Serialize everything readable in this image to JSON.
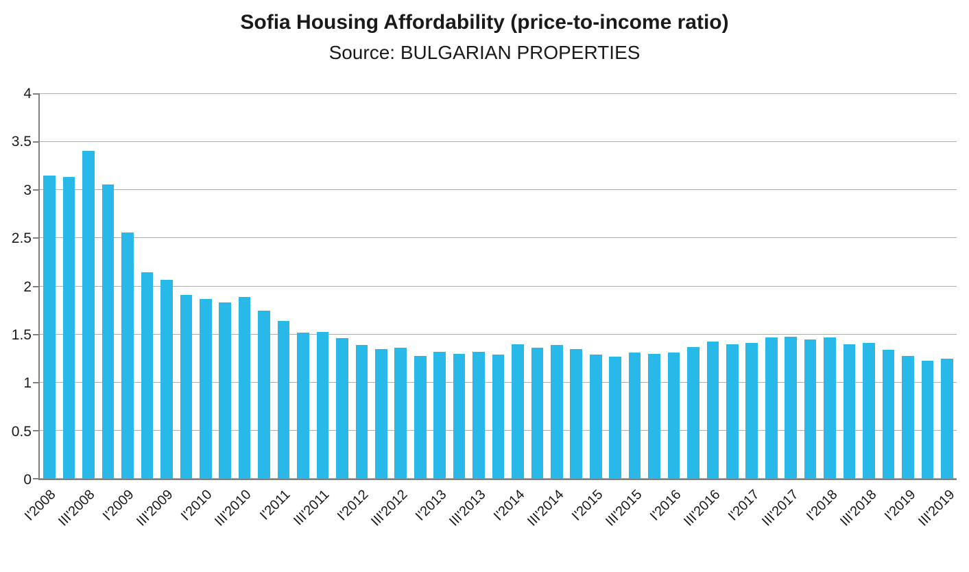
{
  "chart_data": {
    "type": "bar",
    "title": "Sofia Housing Affordability (price-to-income ratio)",
    "subtitle": "Source: BULGARIAN PROPERTIES",
    "categories": [
      "I'2008",
      "II'2008",
      "III'2008",
      "IV'2008",
      "I'2009",
      "II'2009",
      "III'2009",
      "IV'2009",
      "I'2010",
      "II'2010",
      "III'2010",
      "IV'2010",
      "I'2011",
      "II'2011",
      "III'2011",
      "IV'2011",
      "I'2012",
      "II'2012",
      "III'2012",
      "IV'2012",
      "I'2013",
      "II'2013",
      "III'2013",
      "IV'2013",
      "I'2014",
      "II'2014",
      "III'2014",
      "IV'2014",
      "I'2015",
      "II'2015",
      "III'2015",
      "IV'2015",
      "I'2016",
      "II'2016",
      "III'2016",
      "IV'2016",
      "I'2017",
      "II'2017",
      "III'2017",
      "IV'2017",
      "I'2018",
      "II'2018",
      "III'2018",
      "IV'2018",
      "I'2019",
      "II'2019",
      "III'2019"
    ],
    "values": [
      3.15,
      3.14,
      3.41,
      3.06,
      2.56,
      2.15,
      2.07,
      1.91,
      1.87,
      1.83,
      1.89,
      1.75,
      1.64,
      1.52,
      1.53,
      1.46,
      1.39,
      1.35,
      1.36,
      1.28,
      1.32,
      1.3,
      1.32,
      1.29,
      1.4,
      1.36,
      1.39,
      1.35,
      1.29,
      1.27,
      1.31,
      1.3,
      1.31,
      1.37,
      1.43,
      1.4,
      1.41,
      1.47,
      1.48,
      1.45,
      1.47,
      1.4,
      1.41,
      1.34,
      1.28,
      1.23,
      1.25
    ],
    "x_label_every": 2,
    "x_tick_labels_shown": [
      "I'2008",
      "III'2008",
      "I'2009",
      "III'2009",
      "I'2010",
      "III'2010",
      "I'2011",
      "III'2011",
      "I'2012",
      "III'2012",
      "I'2013",
      "III'2013",
      "I'2014",
      "III'2014",
      "I'2015",
      "III'2015",
      "I'2016",
      "III'2016",
      "I'2017",
      "III'2017",
      "I'2018",
      "III'2018",
      "I'2019",
      "III'2019"
    ],
    "xlabel": "",
    "ylabel": "",
    "ylim": [
      0,
      4
    ],
    "y_ticks": [
      "0",
      "0.5",
      "1",
      "1.5",
      "2",
      "2.5",
      "3",
      "3.5",
      "4"
    ],
    "grid": "horizontal",
    "legend": "none",
    "bar_color": "#29B9E8",
    "gridline_color": "#ADADAD",
    "axis_color": "#7F7F7F"
  }
}
